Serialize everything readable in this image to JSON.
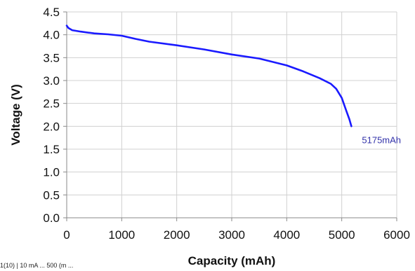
{
  "chart_data": {
    "type": "line",
    "title": "",
    "xlabel": "Capacity (mAh)",
    "ylabel": "Voltage (V)",
    "xlim": [
      0,
      6000
    ],
    "ylim": [
      0.0,
      4.5
    ],
    "x_ticks": [
      "0",
      "1000",
      "2000",
      "3000",
      "4000",
      "5000",
      "6000"
    ],
    "y_ticks": [
      "0.0",
      "0.5",
      "1.0",
      "1.5",
      "2.0",
      "2.5",
      "3.0",
      "3.5",
      "4.0",
      "4.5"
    ],
    "grid": true,
    "legend": "none",
    "line_color": "#1a1aff",
    "annotation": {
      "text": "5175mAh",
      "x": 5175,
      "y": 2.0,
      "color": "#3333aa"
    },
    "series": [
      {
        "values": [
          {
            "x": 0,
            "y": 4.2
          },
          {
            "x": 30,
            "y": 4.15
          },
          {
            "x": 100,
            "y": 4.1
          },
          {
            "x": 250,
            "y": 4.07
          },
          {
            "x": 500,
            "y": 4.03
          },
          {
            "x": 750,
            "y": 4.01
          },
          {
            "x": 1000,
            "y": 3.98
          },
          {
            "x": 1250,
            "y": 3.91
          },
          {
            "x": 1500,
            "y": 3.85
          },
          {
            "x": 2000,
            "y": 3.77
          },
          {
            "x": 2500,
            "y": 3.68
          },
          {
            "x": 3000,
            "y": 3.57
          },
          {
            "x": 3500,
            "y": 3.48
          },
          {
            "x": 4000,
            "y": 3.33
          },
          {
            "x": 4300,
            "y": 3.2
          },
          {
            "x": 4600,
            "y": 3.05
          },
          {
            "x": 4800,
            "y": 2.93
          },
          {
            "x": 4900,
            "y": 2.82
          },
          {
            "x": 5000,
            "y": 2.62
          },
          {
            "x": 5080,
            "y": 2.35
          },
          {
            "x": 5140,
            "y": 2.15
          },
          {
            "x": 5175,
            "y": 2.0
          }
        ]
      }
    ]
  },
  "footnote": "1(10) | 10 mA  ...  500 (m  ..."
}
